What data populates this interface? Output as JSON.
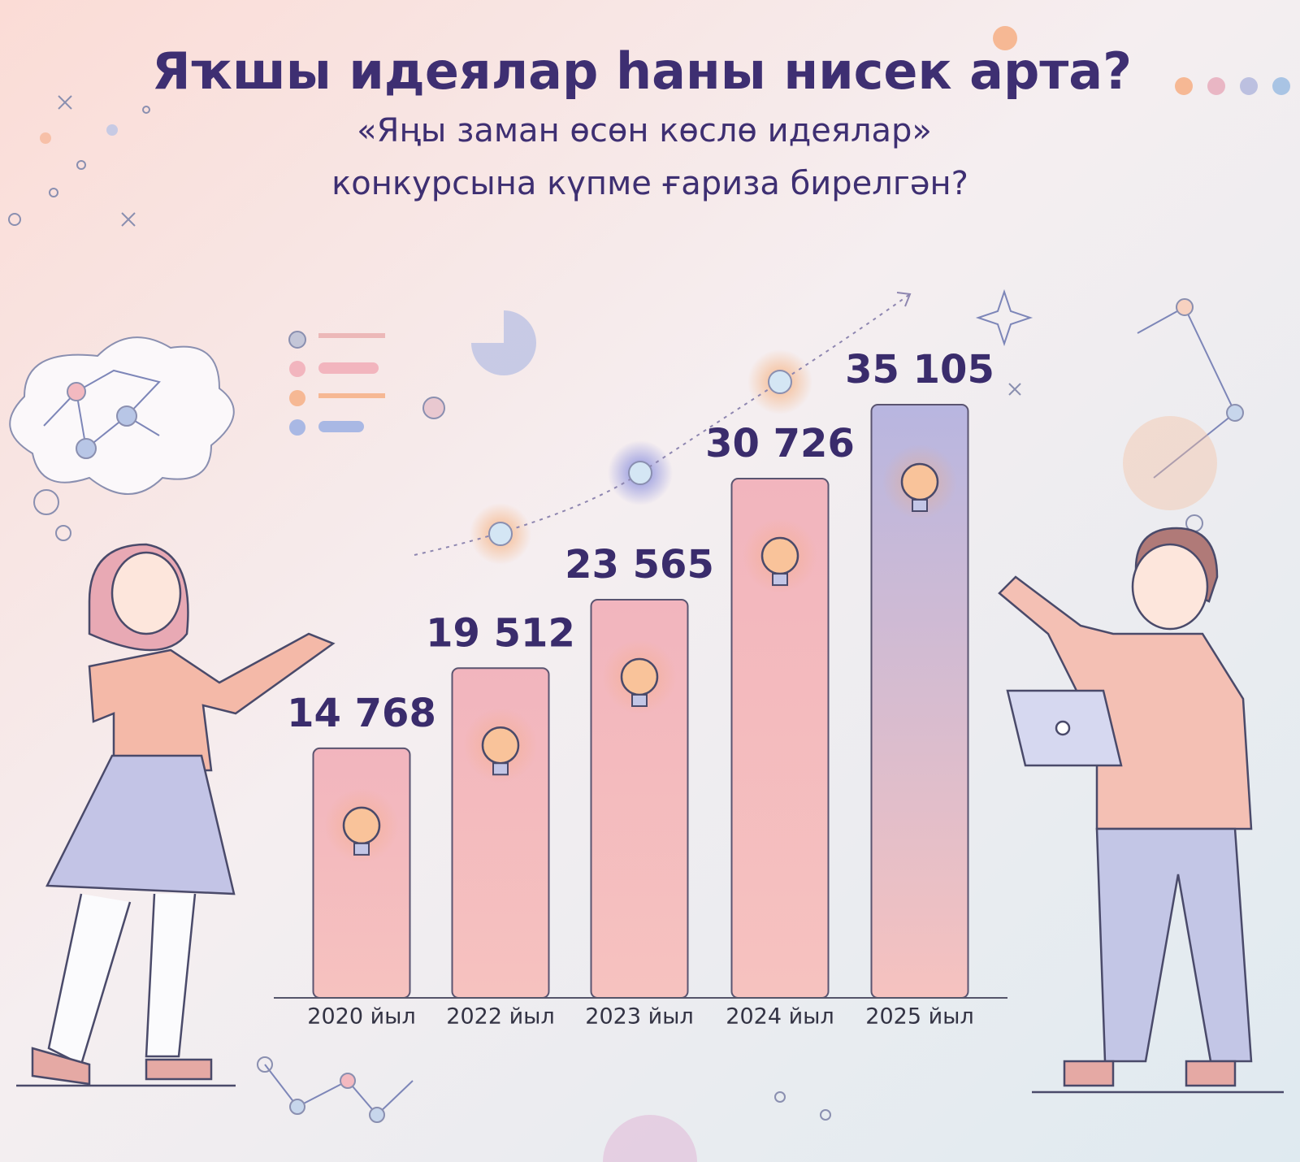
{
  "chart_data": {
    "type": "bar",
    "title": "Яҡшы идеялар һаны нисек арта?",
    "subtitle": [
      "«Яңы заман өсөн көслө идеялар»",
      "конкурсына күпме ғариза бирелгән?"
    ],
    "categories": [
      "2020 йыл",
      "2022 йыл",
      "2023 йыл",
      "2024 йыл",
      "2025 йыл"
    ],
    "values": [
      14768,
      19512,
      23565,
      30726,
      35105
    ],
    "value_labels": [
      "14 768",
      "19 512",
      "23 565",
      "30 726",
      "35 105"
    ],
    "colors": [
      "#f2b5be",
      "#f2b5be",
      "#f2b5be",
      "#f2b5be",
      "#b8b6e0"
    ]
  }
}
